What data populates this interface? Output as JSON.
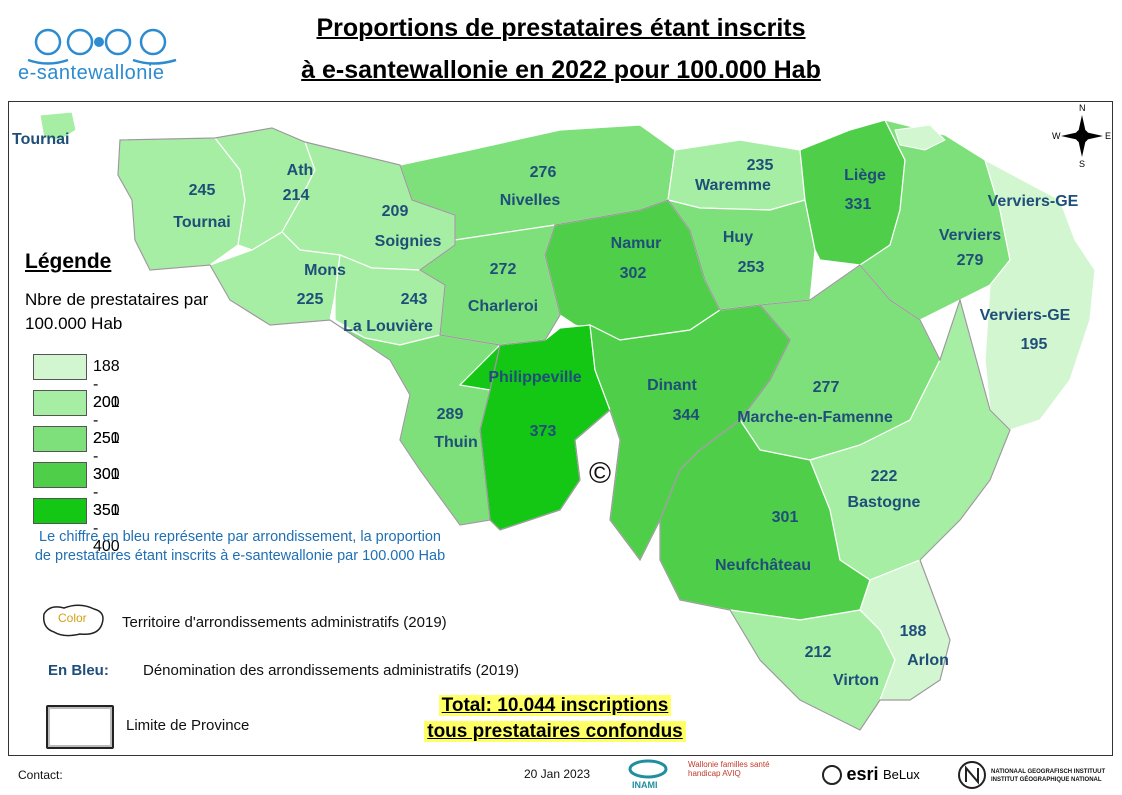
{
  "title": {
    "line1": "Proportions de prestataires étant inscrits",
    "line2": "à e-santewallonie en 2022 pour 100.000 Hab"
  },
  "logo": {
    "text": "e-santewallonie"
  },
  "compass": {
    "n": "N",
    "s": "S",
    "e": "E",
    "w": "W"
  },
  "regions": [
    {
      "name": "Tournai",
      "value": "245",
      "color": "#a6eea3"
    },
    {
      "name": "Ath",
      "value": "214",
      "color": "#a6eea3"
    },
    {
      "name": "Soignies",
      "value": "209",
      "color": "#a6eea3"
    },
    {
      "name": "Nivelles",
      "value": "276",
      "color": "#7ee07a"
    },
    {
      "name": "Mons",
      "value": "225",
      "color": "#a6eea3"
    },
    {
      "name": "La Louvière",
      "value": "243",
      "color": "#a6eea3"
    },
    {
      "name": "Charleroi",
      "value": "272",
      "color": "#7ee07a"
    },
    {
      "name": "Namur",
      "value": "302",
      "color": "#4fcf49"
    },
    {
      "name": "Waremme",
      "value": "235",
      "color": "#a6eea3"
    },
    {
      "name": "Huy",
      "value": "253",
      "color": "#7ee07a"
    },
    {
      "name": "Liège",
      "value": "331",
      "color": "#4fcf49"
    },
    {
      "name": "Verviers",
      "value": "279",
      "color": "#7ee07a"
    },
    {
      "name": "Verviers-GE",
      "value": "195",
      "color": "#d2f7d0"
    },
    {
      "name": "Thuin",
      "value": "289",
      "color": "#7ee07a"
    },
    {
      "name": "Philippeville",
      "value": "373",
      "color": "#14c714"
    },
    {
      "name": "Dinant",
      "value": "344",
      "color": "#4fcf49"
    },
    {
      "name": "Marche-en-Famenne",
      "value": "277",
      "color": "#7ee07a"
    },
    {
      "name": "Bastogne",
      "value": "222",
      "color": "#a6eea3"
    },
    {
      "name": "Neufchâteau",
      "value": "301",
      "color": "#4fcf49"
    },
    {
      "name": "Virton",
      "value": "212",
      "color": "#a6eea3"
    },
    {
      "name": "Arlon",
      "value": "188",
      "color": "#d2f7d0"
    }
  ],
  "extra_labels": {
    "tournai_outside": "Tournai",
    "verviers_ge_top": "Verviers-GE"
  },
  "copyright": "©",
  "legend": {
    "title": "Légende",
    "subtitle": "Nbre de prestataires par 100.000 Hab",
    "classes": [
      {
        "label": "188 - 200",
        "color": "#d2f7d0"
      },
      {
        "label": "201 - 250",
        "color": "#a6eea3"
      },
      {
        "label": "251 - 300",
        "color": "#7ee07a"
      },
      {
        "label": "301 - 350",
        "color": "#4fcf49"
      },
      {
        "label": "351 - 400",
        "color": "#14c714"
      }
    ],
    "note": "Le chiffre en bleu représente par arrondissement, la proportion de prestataires étant inscrits à e-santewallonie par 100.000 Hab",
    "territory_symbol": "Color",
    "territory_label": "Territoire d'arrondissements administratifs (2019)",
    "blue_key": "En Bleu:",
    "blue_label": "Dénomination des arrondissements administratifs (2019)",
    "province_label": "Limite de Province"
  },
  "total": {
    "line1": "Total: 10.044  inscriptions",
    "line2": "tous prestataires confondus"
  },
  "footer": {
    "contact": "Contact:",
    "date": "20  Jan 2023",
    "inami": "INAMI",
    "wallonie": "Wallonie familles santé handicap AVIQ",
    "esri": "esri",
    "belux": "BeLux",
    "ngi": "NATIONAAL GEOGRAFISCH INSTITUUT INSTITUT GÉOGRAPHIQUE NATIONAL"
  }
}
